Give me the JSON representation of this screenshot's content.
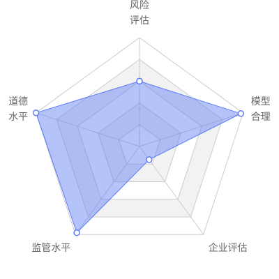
{
  "chart_data": {
    "type": "radar",
    "indicators": [
      {
        "label_lines": [
          "风险",
          "评估"
        ],
        "max": 100
      },
      {
        "label_lines": [
          "模型",
          "合理"
        ],
        "max": 100
      },
      {
        "label_lines": [
          "企业评估"
        ],
        "max": 100
      },
      {
        "label_lines": [
          "监管水平"
        ],
        "max": 100
      },
      {
        "label_lines": [
          "道德",
          "水平"
        ],
        "max": 100
      }
    ],
    "series": [
      {
        "values": [
          60,
          98,
          15,
          98,
          100
        ],
        "color": "#5b7bf7"
      }
    ],
    "split_number": 5,
    "split_area_colors": [
      "#ffffff",
      "#f2f2f2"
    ],
    "split_line_color": "#cccccc",
    "axis_line_color": "#cccccc",
    "label_color": "#666666"
  }
}
